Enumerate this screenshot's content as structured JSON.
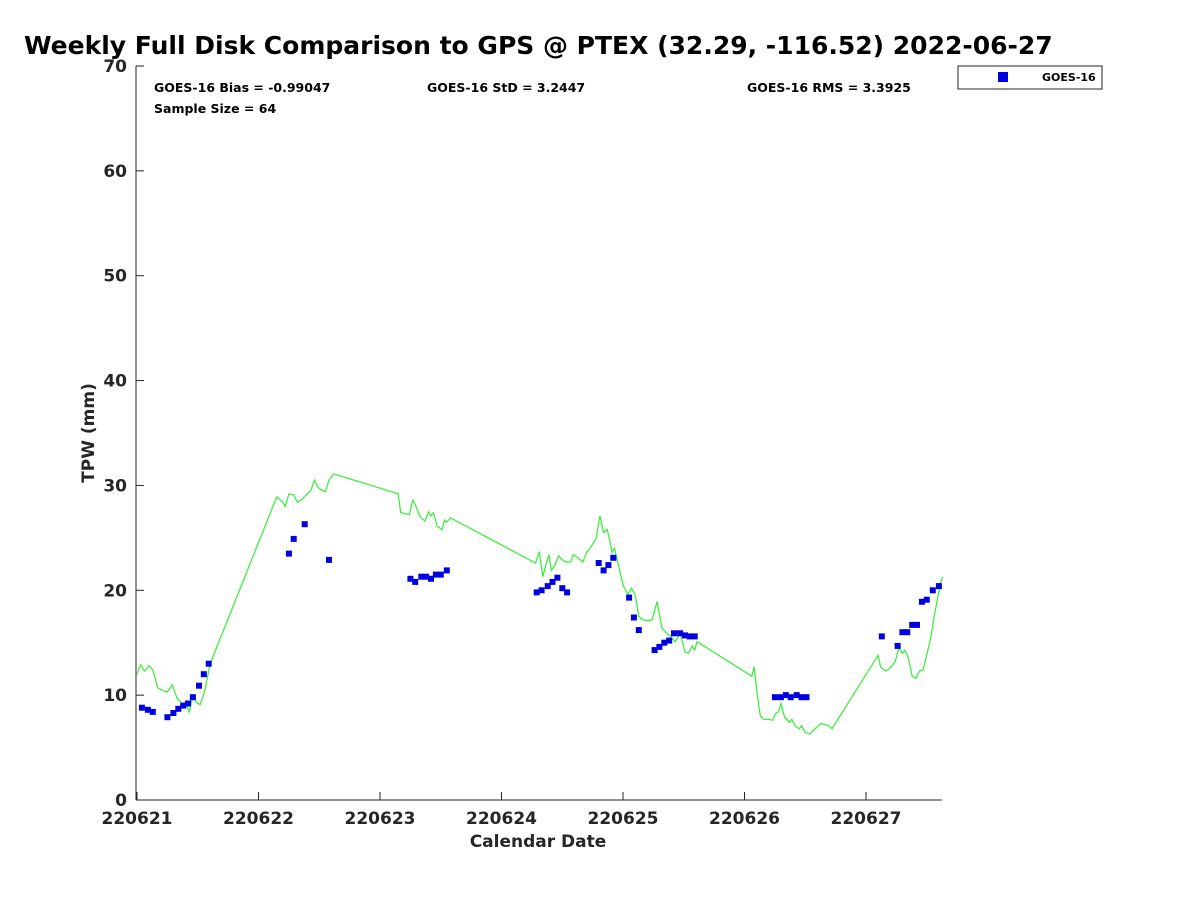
{
  "chart_data": {
    "type": "scatter",
    "title": "Weekly Full Disk Comparison to GPS @ PTEX (32.29, -116.52) 2022-06-27",
    "xlabel": "Calendar Date",
    "ylabel": "TPW (mm)",
    "xlim": [
      0,
      6.63
    ],
    "ylim": [
      0,
      70
    ],
    "x_ticks": [
      0,
      1,
      2,
      3,
      4,
      5,
      6
    ],
    "x_tick_labels": [
      "220621",
      "220622",
      "220623",
      "220624",
      "220625",
      "220626",
      "220627"
    ],
    "y_ticks": [
      0,
      10,
      20,
      30,
      40,
      50,
      60,
      70
    ],
    "y_tick_labels": [
      "0",
      "10",
      "20",
      "30",
      "40",
      "50",
      "60",
      "70"
    ],
    "stats": {
      "bias": "GOES-16 Bias = -0.99047",
      "std": "GOES-16 StD = 3.2447",
      "rms": "GOES-16 RMS = 3.3925",
      "sample_size": "Sample Size = 64"
    },
    "legend": {
      "label": "GOES-16",
      "placement": "top-right outside"
    },
    "series": [
      {
        "name": "GOES-16",
        "kind": "scatter",
        "color": "#0000e0",
        "points": [
          [
            0.04,
            8.8
          ],
          [
            0.09,
            8.6
          ],
          [
            0.13,
            8.4
          ],
          [
            0.25,
            7.9
          ],
          [
            0.3,
            8.3
          ],
          [
            0.34,
            8.7
          ],
          [
            0.38,
            9.0
          ],
          [
            0.42,
            9.2
          ],
          [
            0.46,
            9.8
          ],
          [
            0.51,
            10.9
          ],
          [
            0.55,
            12.0
          ],
          [
            0.59,
            13.0
          ],
          [
            1.25,
            23.5
          ],
          [
            1.29,
            24.9
          ],
          [
            1.38,
            26.3
          ],
          [
            1.58,
            22.9
          ],
          [
            2.25,
            21.1
          ],
          [
            2.29,
            20.8
          ],
          [
            2.34,
            21.3
          ],
          [
            2.38,
            21.3
          ],
          [
            2.42,
            21.1
          ],
          [
            2.46,
            21.5
          ],
          [
            2.5,
            21.5
          ],
          [
            2.55,
            21.9
          ],
          [
            3.29,
            19.8
          ],
          [
            3.33,
            20.0
          ],
          [
            3.38,
            20.4
          ],
          [
            3.42,
            20.8
          ],
          [
            3.46,
            21.2
          ],
          [
            3.5,
            20.2
          ],
          [
            3.54,
            19.8
          ],
          [
            3.8,
            22.6
          ],
          [
            3.84,
            21.9
          ],
          [
            3.88,
            22.4
          ],
          [
            3.92,
            23.1
          ],
          [
            4.05,
            19.3
          ],
          [
            4.09,
            17.4
          ],
          [
            4.13,
            16.2
          ],
          [
            4.26,
            14.3
          ],
          [
            4.3,
            14.6
          ],
          [
            4.34,
            15.0
          ],
          [
            4.38,
            15.2
          ],
          [
            4.42,
            15.9
          ],
          [
            4.47,
            15.9
          ],
          [
            4.51,
            15.7
          ],
          [
            4.55,
            15.6
          ],
          [
            4.59,
            15.6
          ],
          [
            5.25,
            9.8
          ],
          [
            5.3,
            9.8
          ],
          [
            5.34,
            10.0
          ],
          [
            5.38,
            9.8
          ],
          [
            5.43,
            10.0
          ],
          [
            5.47,
            9.8
          ],
          [
            5.51,
            9.8
          ],
          [
            6.13,
            15.6
          ],
          [
            6.26,
            14.7
          ],
          [
            6.3,
            16.0
          ],
          [
            6.34,
            16.0
          ],
          [
            6.38,
            16.7
          ],
          [
            6.42,
            16.7
          ],
          [
            6.46,
            18.9
          ],
          [
            6.5,
            19.1
          ],
          [
            6.55,
            20.0
          ],
          [
            6.6,
            20.4
          ]
        ]
      },
      {
        "name": "GPS",
        "kind": "line",
        "color": "#33ee33",
        "points": [
          [
            0.0,
            12.0
          ],
          [
            0.03,
            12.9
          ],
          [
            0.06,
            12.3
          ],
          [
            0.1,
            12.8
          ],
          [
            0.13,
            12.4
          ],
          [
            0.17,
            10.7
          ],
          [
            0.22,
            10.4
          ],
          [
            0.25,
            10.3
          ],
          [
            0.29,
            11.0
          ],
          [
            0.33,
            9.7
          ],
          [
            0.37,
            9.2
          ],
          [
            0.41,
            9.0
          ],
          [
            0.43,
            8.4
          ],
          [
            0.46,
            9.9
          ],
          [
            0.49,
            9.3
          ],
          [
            0.52,
            9.1
          ],
          [
            0.56,
            10.5
          ],
          [
            0.6,
            12.9
          ],
          [
            0.62,
            13.5
          ],
          [
            1.15,
            28.9
          ],
          [
            1.2,
            28.4
          ],
          [
            1.22,
            28.0
          ],
          [
            1.25,
            29.2
          ],
          [
            1.29,
            29.1
          ],
          [
            1.32,
            28.4
          ],
          [
            1.36,
            28.7
          ],
          [
            1.4,
            29.2
          ],
          [
            1.43,
            29.5
          ],
          [
            1.46,
            30.5
          ],
          [
            1.49,
            29.8
          ],
          [
            1.53,
            29.5
          ],
          [
            1.55,
            29.4
          ],
          [
            1.58,
            30.5
          ],
          [
            1.62,
            31.1
          ],
          [
            2.15,
            29.2
          ],
          [
            2.17,
            27.4
          ],
          [
            2.21,
            27.3
          ],
          [
            2.24,
            27.2
          ],
          [
            2.27,
            28.6
          ],
          [
            2.3,
            27.9
          ],
          [
            2.33,
            27.0
          ],
          [
            2.37,
            26.6
          ],
          [
            2.4,
            27.5
          ],
          [
            2.42,
            27.1
          ],
          [
            2.44,
            27.4
          ],
          [
            2.47,
            26.1
          ],
          [
            2.51,
            25.8
          ],
          [
            2.53,
            26.7
          ],
          [
            2.55,
            26.5
          ],
          [
            2.58,
            26.9
          ],
          [
            3.28,
            22.6
          ],
          [
            3.31,
            23.7
          ],
          [
            3.34,
            21.3
          ],
          [
            3.36,
            22.2
          ],
          [
            3.39,
            23.4
          ],
          [
            3.41,
            21.9
          ],
          [
            3.44,
            22.4
          ],
          [
            3.47,
            23.3
          ],
          [
            3.5,
            22.9
          ],
          [
            3.53,
            22.7
          ],
          [
            3.57,
            22.7
          ],
          [
            3.59,
            23.4
          ],
          [
            3.63,
            23.1
          ],
          [
            3.67,
            22.7
          ],
          [
            3.7,
            23.6
          ],
          [
            3.74,
            24.2
          ],
          [
            3.78,
            25.0
          ],
          [
            3.81,
            27.1
          ],
          [
            3.84,
            25.5
          ],
          [
            3.87,
            25.8
          ],
          [
            3.89,
            24.8
          ],
          [
            3.91,
            23.6
          ],
          [
            3.93,
            24.0
          ],
          [
            3.97,
            22.0
          ],
          [
            4.0,
            20.5
          ],
          [
            4.04,
            19.6
          ],
          [
            4.07,
            20.2
          ],
          [
            4.1,
            19.6
          ],
          [
            4.13,
            17.5
          ],
          [
            4.16,
            17.2
          ],
          [
            4.2,
            17.1
          ],
          [
            4.24,
            17.2
          ],
          [
            4.28,
            18.9
          ],
          [
            4.32,
            16.4
          ],
          [
            4.35,
            16.0
          ],
          [
            4.39,
            15.6
          ],
          [
            4.43,
            15.1
          ],
          [
            4.47,
            15.9
          ],
          [
            4.51,
            14.1
          ],
          [
            4.54,
            14.0
          ],
          [
            4.57,
            14.7
          ],
          [
            4.59,
            14.3
          ],
          [
            4.61,
            15.1
          ],
          [
            5.06,
            11.8
          ],
          [
            5.08,
            12.7
          ],
          [
            5.1,
            10.5
          ],
          [
            5.13,
            8.0
          ],
          [
            5.16,
            7.7
          ],
          [
            5.2,
            7.7
          ],
          [
            5.23,
            7.6
          ],
          [
            5.26,
            8.3
          ],
          [
            5.28,
            8.4
          ],
          [
            5.3,
            9.2
          ],
          [
            5.33,
            7.9
          ],
          [
            5.37,
            7.4
          ],
          [
            5.39,
            7.7
          ],
          [
            5.42,
            7.0
          ],
          [
            5.45,
            6.8
          ],
          [
            5.47,
            7.1
          ],
          [
            5.5,
            6.4
          ],
          [
            5.54,
            6.3
          ],
          [
            5.58,
            6.8
          ],
          [
            5.63,
            7.3
          ],
          [
            5.69,
            7.1
          ],
          [
            5.72,
            6.8
          ],
          [
            6.1,
            13.8
          ],
          [
            6.12,
            12.7
          ],
          [
            6.16,
            12.3
          ],
          [
            6.2,
            12.6
          ],
          [
            6.24,
            13.2
          ],
          [
            6.27,
            14.5
          ],
          [
            6.3,
            14.0
          ],
          [
            6.32,
            14.3
          ],
          [
            6.35,
            13.5
          ],
          [
            6.38,
            11.8
          ],
          [
            6.41,
            11.6
          ],
          [
            6.44,
            12.3
          ],
          [
            6.47,
            12.4
          ],
          [
            6.5,
            13.9
          ],
          [
            6.53,
            15.3
          ],
          [
            6.56,
            17.4
          ],
          [
            6.59,
            19.3
          ],
          [
            6.61,
            20.5
          ],
          [
            6.63,
            21.3
          ]
        ]
      }
    ]
  }
}
